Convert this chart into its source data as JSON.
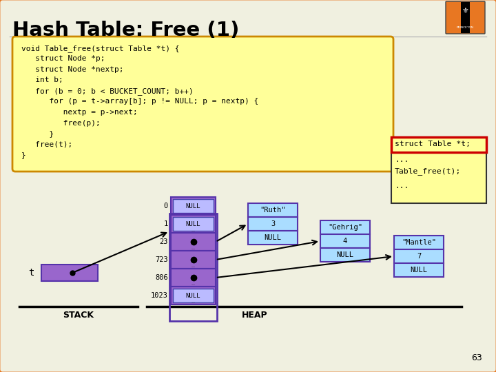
{
  "title": "Hash Table: Free (1)",
  "slide_bg": "#f0f0e0",
  "border_color": "#e87722",
  "code_bg": "#ffff99",
  "code_border": "#cc8800",
  "code_text": [
    "void Table_free(struct Table *t) {",
    "   struct Node *p;",
    "   struct Node *nextp;",
    "   int b;",
    "   for (b = 0; b < BUCKET_COUNT; b++)",
    "      for (p = t->array[b]; p != NULL; p = nextp) {",
    "         nextp = p->next;",
    "         free(p);",
    "      }",
    "   free(t);",
    "}"
  ],
  "callout_bg": "#ffff99",
  "callout_border_outer": "#333333",
  "callout_border_red": "#cc0000",
  "callout_line1": "struct Table *t;",
  "callout_line2": "...",
  "callout_line3": "Table_free(t);",
  "callout_line4": "...",
  "array_color": "#9966cc",
  "array_border": "#5533aa",
  "node_color": "#aaddff",
  "node_border": "#5533aa",
  "stack_box_color": "#9966cc",
  "stack_box_border": "#5533aa",
  "page_number": "63"
}
